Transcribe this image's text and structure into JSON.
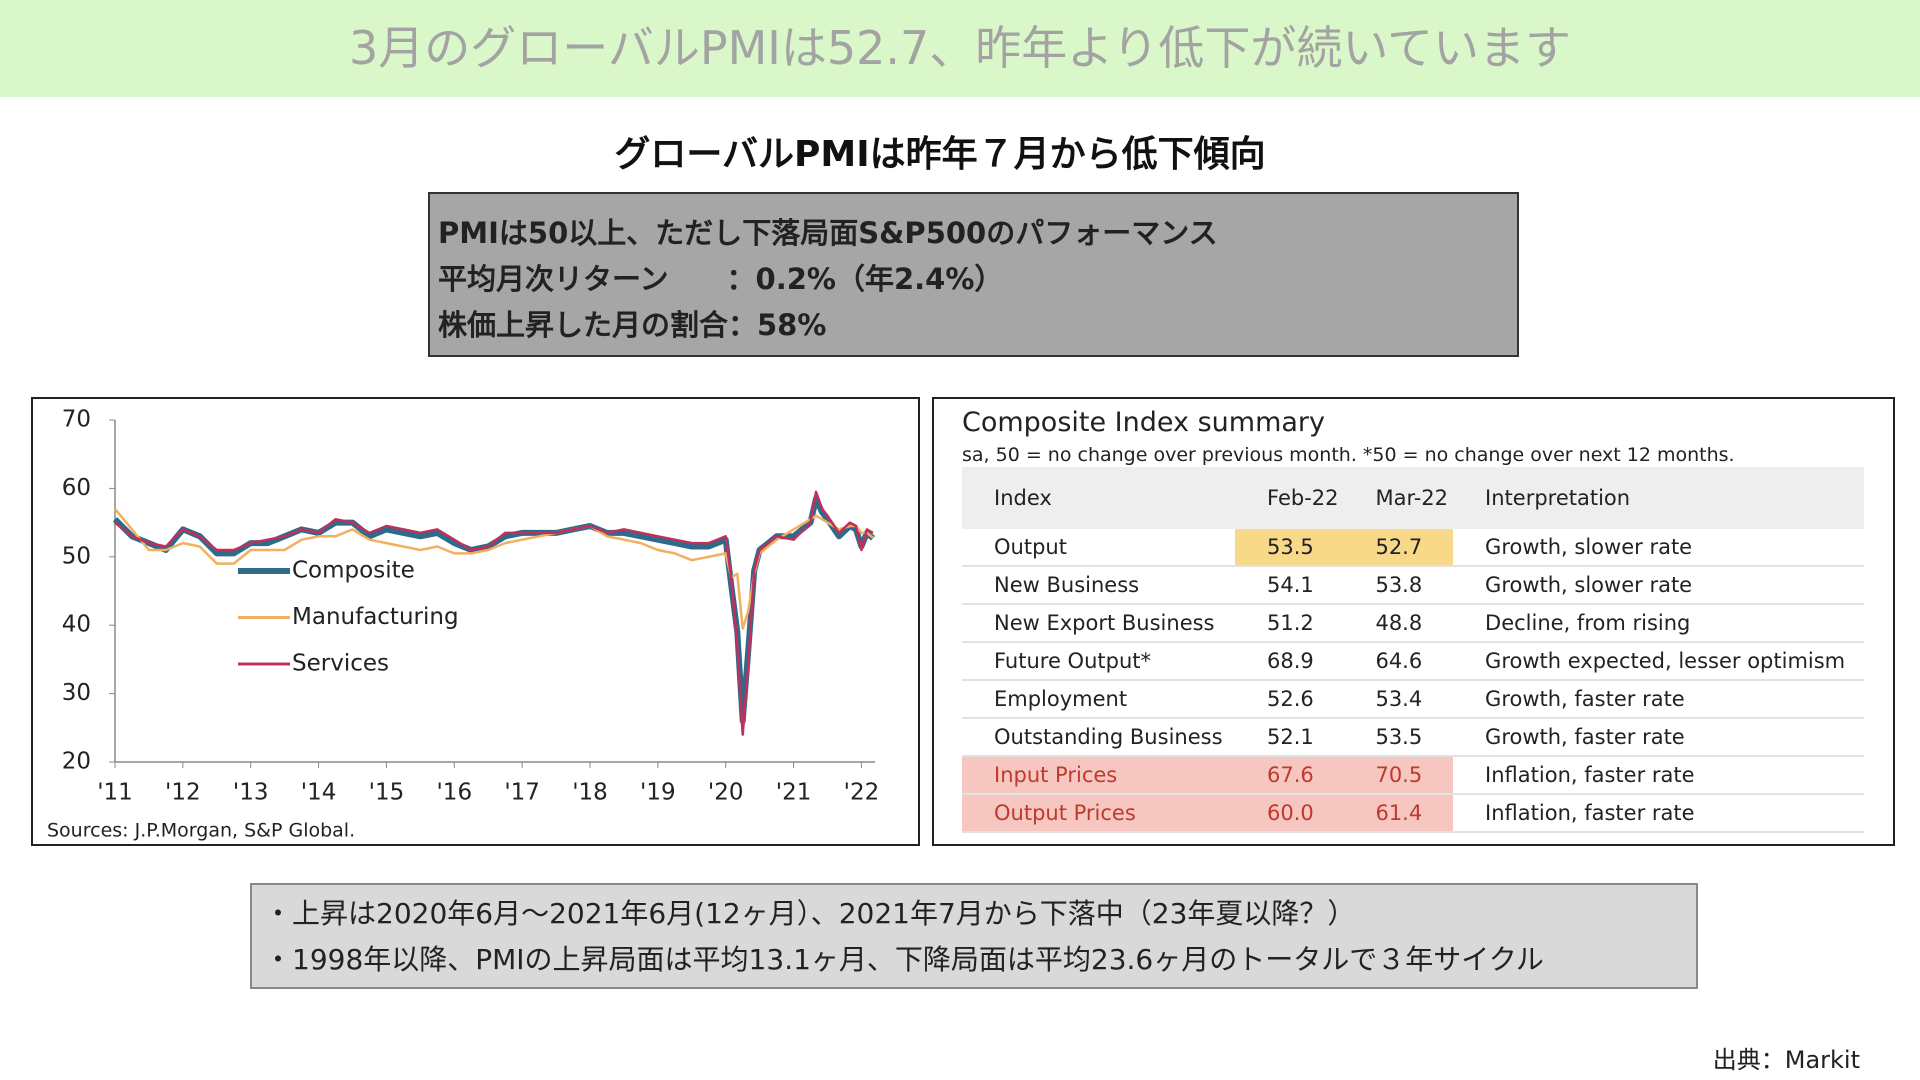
{
  "header": {
    "title": "3月のグローバルPMIは52.7、昨年より低下が続いています"
  },
  "subtitle": "グローバルPMIは昨年７月から低下傾向",
  "box": {
    "lines": [
      "PMIは50以上、ただし下落局面S&P500のパフォーマンス",
      "平均月次リターン　　：0.2%（年2.4%）",
      "株価上昇した月の割合：58%"
    ]
  },
  "chart_data": {
    "type": "line",
    "note": "Sources: J.P.Morgan, S&P Global.",
    "x": [
      2011,
      2011.25,
      2011.5,
      2011.75,
      2012,
      2012.25,
      2012.5,
      2012.75,
      2013,
      2013.25,
      2013.5,
      2013.75,
      2014,
      2014.25,
      2014.5,
      2014.75,
      2015,
      2015.25,
      2015.5,
      2015.75,
      2016,
      2016.25,
      2016.5,
      2016.75,
      2017,
      2017.25,
      2017.5,
      2017.75,
      2018,
      2018.25,
      2018.5,
      2018.75,
      2019,
      2019.25,
      2019.5,
      2019.75,
      2020,
      2020.08,
      2020.17,
      2020.25,
      2020.33,
      2020.42,
      2020.5,
      2020.75,
      2021,
      2021.25,
      2021.33,
      2021.42,
      2021.5,
      2021.67,
      2021.83,
      2021.92,
      2022,
      2022.08,
      2022.17
    ],
    "series": [
      {
        "name": "Composite",
        "color": "#2e6b8a",
        "values": [
          55.5,
          53,
          52,
          51,
          54,
          53,
          50.5,
          50.5,
          52,
          52,
          53,
          54,
          53.5,
          55,
          55,
          53,
          54,
          53.5,
          53,
          53.5,
          52,
          51,
          51.5,
          53,
          53.5,
          53.5,
          53.5,
          54,
          54.5,
          53.5,
          53.5,
          53,
          52.5,
          52,
          51.5,
          51.5,
          52.5,
          46,
          39,
          26,
          36,
          48,
          51,
          53,
          53,
          55,
          58.5,
          56.5,
          55.5,
          53,
          54.5,
          54,
          51.5,
          53.5,
          52.7
        ]
      },
      {
        "name": "Manufacturing",
        "color": "#f0b060",
        "values": [
          57,
          54,
          51,
          51,
          52,
          51.5,
          49,
          49,
          51,
          51,
          51,
          52.5,
          53,
          53,
          54,
          52.5,
          52,
          51.5,
          51,
          51.5,
          50.5,
          50.5,
          51,
          52,
          52.5,
          53,
          53.5,
          54,
          54.5,
          53,
          52.5,
          52,
          51,
          50.5,
          49.5,
          50,
          50.5,
          47,
          47.5,
          39.5,
          42,
          47.5,
          50.5,
          52.5,
          54,
          55.5,
          56,
          55.5,
          55,
          54,
          54.5,
          54.5,
          53.5,
          53.5,
          52.8
        ]
      },
      {
        "name": "Services",
        "color": "#c0305a",
        "values": [
          55,
          53,
          52,
          51.5,
          54,
          53,
          51,
          51,
          52,
          52.5,
          53,
          54,
          53.5,
          55.5,
          55,
          53.5,
          54.5,
          54,
          53.5,
          54,
          52.5,
          51,
          51.5,
          53.5,
          53.5,
          53.5,
          53.5,
          54,
          54.5,
          53.5,
          54,
          53.5,
          53,
          52.5,
          52,
          52,
          53,
          47,
          37,
          24,
          34,
          48,
          51,
          53,
          52.5,
          55,
          59.5,
          57,
          56,
          53.5,
          55,
          54.5,
          51,
          54,
          53.5
        ]
      }
    ],
    "xlim": [
      2011,
      2022.2
    ],
    "xticks": [
      {
        "value": 2011,
        "label": "'11"
      },
      {
        "value": 2012,
        "label": "'12"
      },
      {
        "value": 2013,
        "label": "'13"
      },
      {
        "value": 2014,
        "label": "'14"
      },
      {
        "value": 2015,
        "label": "'15"
      },
      {
        "value": 2016,
        "label": "'16"
      },
      {
        "value": 2017,
        "label": "'17"
      },
      {
        "value": 2018,
        "label": "'18"
      },
      {
        "value": 2019,
        "label": "'19"
      },
      {
        "value": 2020,
        "label": "'20"
      },
      {
        "value": 2021,
        "label": "'21"
      },
      {
        "value": 2022,
        "label": "'22"
      }
    ],
    "ylim": [
      20,
      70
    ],
    "yticks": [
      20,
      30,
      40,
      50,
      60,
      70
    ],
    "grid": false,
    "legend": "left"
  },
  "table": {
    "title": "Composite Index summary",
    "subtitle": "sa, 50 = no change over previous month. *50 = no change over next 12 months.",
    "columns": [
      "Index",
      "Feb-22",
      "Mar-22",
      "Interpretation"
    ],
    "rows": [
      [
        "Output",
        "53.5",
        "52.7",
        "Growth, slower rate"
      ],
      [
        "New Business",
        "54.1",
        "53.8",
        "Growth, slower rate"
      ],
      [
        "New Export Business",
        "51.2",
        "48.8",
        "Decline, from rising"
      ],
      [
        "Future Output*",
        "68.9",
        "64.6",
        "Growth expected, lesser optimism"
      ],
      [
        "Employment",
        "52.6",
        "53.4",
        "Growth, faster rate"
      ],
      [
        "Outstanding Business",
        "52.1",
        "53.5",
        "Growth, faster rate"
      ],
      [
        "Input Prices",
        "67.6",
        "70.5",
        "Inflation, faster rate"
      ],
      [
        "Output Prices",
        "60.0",
        "61.4",
        "Inflation, faster rate"
      ]
    ]
  },
  "notes": [
    "・上昇は2020年6月〜2021年6月(12ヶ月）、2021年7月から下落中（23年夏以降？）",
    "・1998年以降、PMIの上昇局面は平均13.1ヶ月、下降局面は平均23.6ヶ月のトータルで３年サイクル"
  ],
  "source": "出典：Markit"
}
